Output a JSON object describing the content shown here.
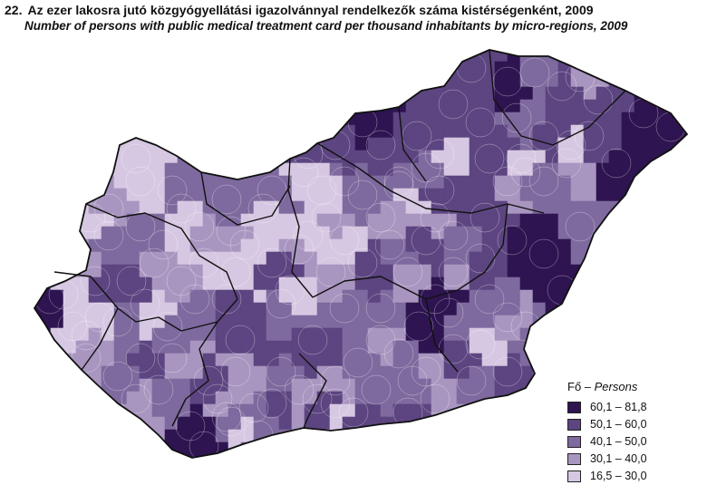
{
  "title": {
    "number": "22.",
    "hungarian": "Az ezer lakosra jutó közgyógyellátási igazolvánnyal rendelkezők száma kistérségenként, 2009",
    "english": "Number of persons with public medical treatment card per thousand inhabitants by micro-regions, 2009"
  },
  "legend": {
    "title_hu": "Fő –",
    "title_en": "Persons",
    "classes": [
      {
        "label": "60,1 – 81,8",
        "color": "#2e1450"
      },
      {
        "label": "50,1 – 60,0",
        "color": "#5c4580"
      },
      {
        "label": "40,1 – 50,0",
        "color": "#7e6a9e"
      },
      {
        "label": "30,1 – 40,0",
        "color": "#a996c0"
      },
      {
        "label": "16,5 – 30,0",
        "color": "#d6c8e2"
      }
    ]
  },
  "map": {
    "county_border_color": "#111111",
    "region_border_color": "#ffffff"
  }
}
